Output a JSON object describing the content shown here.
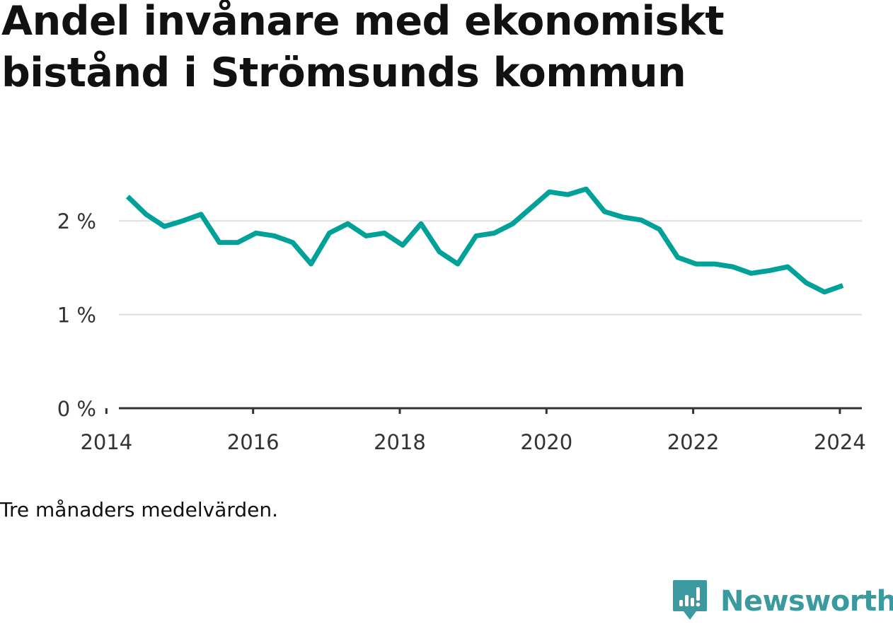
{
  "chart_data": {
    "type": "line",
    "title": "Andel invånare med ekonomiskt bistånd i Strömsunds kommun",
    "xlabel": "",
    "ylabel": "",
    "ylim": [
      0,
      2.5
    ],
    "xlim": [
      2013.9,
      2024.3
    ],
    "yticks": [
      {
        "value": 0,
        "label": "0 %"
      },
      {
        "value": 1,
        "label": "1 %"
      },
      {
        "value": 2,
        "label": "2 %"
      }
    ],
    "xticks": [
      {
        "value": 2014,
        "label": "2014"
      },
      {
        "value": 2016,
        "label": "2016"
      },
      {
        "value": 2018,
        "label": "2018"
      },
      {
        "value": 2020,
        "label": "2020"
      },
      {
        "value": 2022,
        "label": "2022"
      },
      {
        "value": 2024,
        "label": "2024"
      }
    ],
    "grid": "horizontal",
    "color": "#00a199",
    "series": [
      {
        "x": [
          2014.29,
          2014.54,
          2014.79,
          2015.04,
          2015.29,
          2015.54,
          2015.79,
          2016.04,
          2016.29,
          2016.54,
          2016.79,
          2017.04,
          2017.29,
          2017.54,
          2017.79,
          2018.04,
          2018.29,
          2018.54,
          2018.79,
          2019.04,
          2019.29,
          2019.54,
          2019.79,
          2020.04,
          2020.29,
          2020.54,
          2020.79,
          2021.04,
          2021.29,
          2021.54,
          2021.79,
          2022.04,
          2022.29,
          2022.54,
          2022.79,
          2023.04,
          2023.29,
          2023.54,
          2023.79,
          2024.04
        ],
        "values": [
          2.26,
          2.07,
          1.94,
          2.0,
          2.07,
          1.77,
          1.77,
          1.87,
          1.84,
          1.77,
          1.54,
          1.87,
          1.97,
          1.84,
          1.87,
          1.74,
          1.97,
          1.67,
          1.54,
          1.84,
          1.87,
          1.97,
          2.14,
          2.31,
          2.28,
          2.34,
          2.1,
          2.04,
          2.01,
          1.91,
          1.61,
          1.54,
          1.54,
          1.51,
          1.44,
          1.47,
          1.51,
          1.34,
          1.24,
          1.31
        ]
      }
    ]
  },
  "caption": "Tre månaders medelvärden.",
  "brand": {
    "name": "Newsworthy",
    "color": "#3a9aa0",
    "icon": "newsworthy-logo-icon"
  }
}
